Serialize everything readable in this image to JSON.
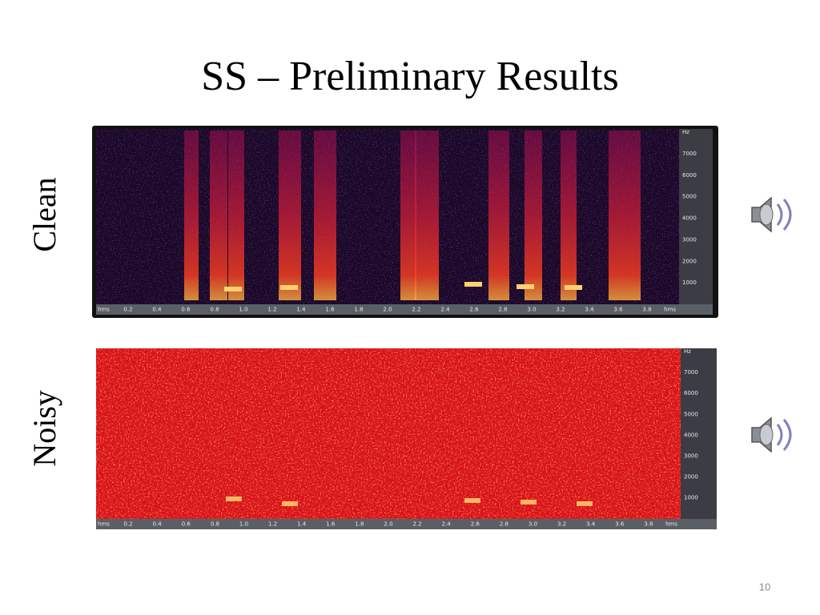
{
  "title": "SS – Preliminary Results",
  "panels": [
    {
      "label": "Clean",
      "time_ticks": [
        "hms",
        "0.2",
        "0.4",
        "0.6",
        "0.8",
        "1.0",
        "1.2",
        "1.4",
        "1.6",
        "1.8",
        "2.0",
        "2.2",
        "2.4",
        "2.6",
        "2.8",
        "3.0",
        "3.2",
        "3.4",
        "3.6",
        "3.8",
        "hms"
      ],
      "freq_ticks": [
        "Hz",
        "7000",
        "6000",
        "5000",
        "4000",
        "3000",
        "2000",
        "1000"
      ]
    },
    {
      "label": "Noisy",
      "time_ticks": [
        "hms",
        "0.2",
        "0.4",
        "0.6",
        "0.8",
        "1.0",
        "1.2",
        "1.4",
        "1.6",
        "1.8",
        "2.0",
        "2.2",
        "2.4",
        "2.6",
        "2.8",
        "3.0",
        "3.2",
        "3.4",
        "3.6",
        "3.8",
        "hms"
      ],
      "freq_ticks": [
        "Hz",
        "7000",
        "6000",
        "5000",
        "4000",
        "3000",
        "2000",
        "1000"
      ]
    }
  ],
  "page_number": "10"
}
